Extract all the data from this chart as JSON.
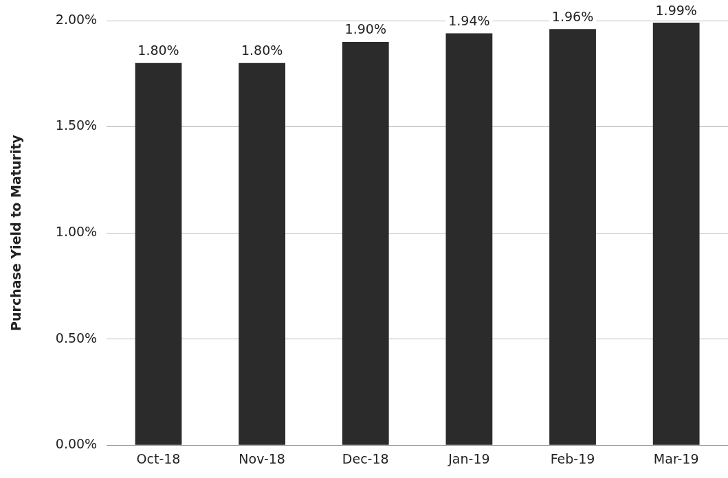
{
  "chart_data": {
    "type": "bar",
    "ylabel": "Purchase Yield to Maturity",
    "categories": [
      "Oct-18",
      "Nov-18",
      "Dec-18",
      "Jan-19",
      "Feb-19",
      "Mar-19"
    ],
    "values": [
      1.8,
      1.8,
      1.9,
      1.94,
      1.96,
      1.99
    ],
    "value_labels": [
      "1.80%",
      "1.80%",
      "1.90%",
      "1.94%",
      "1.96%",
      "1.99%"
    ],
    "color": "#2b2b2b",
    "ylim": [
      0,
      2
    ],
    "yticks": [
      {
        "value": 0,
        "label": "0.00%"
      },
      {
        "value": 0.5,
        "label": "0.50%"
      },
      {
        "value": 1,
        "label": "1.00%"
      },
      {
        "value": 1.5,
        "label": "1.50%"
      },
      {
        "value": 2,
        "label": "2.00%"
      }
    ],
    "grid": "y",
    "legend": false
  }
}
